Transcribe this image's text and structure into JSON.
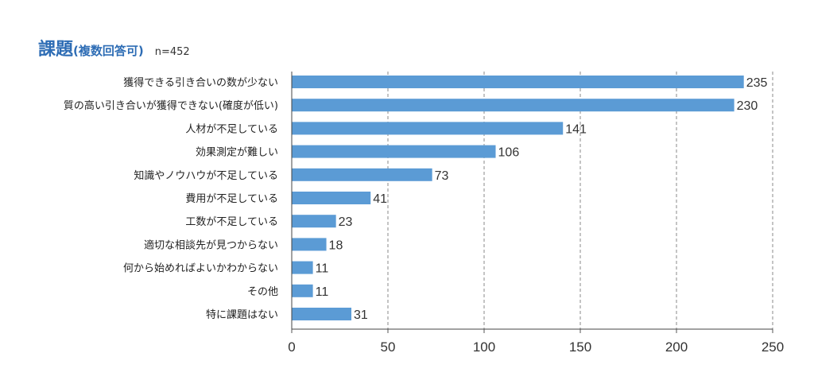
{
  "chart_data": {
    "type": "bar",
    "orientation": "horizontal",
    "title": "課題",
    "subtitle": "(複数回答可)",
    "note": "n=452",
    "categories": [
      "獲得できる引き合いの数が少ない",
      "質の高い引き合いが獲得できない(確度が低い)",
      "人材が不足している",
      "効果測定が難しい",
      "知識やノウハウが不足している",
      "費用が不足している",
      "工数が不足している",
      "適切な相談先が見つからない",
      "何から始めればよいかわからない",
      "その他",
      "特に課題はない"
    ],
    "values": [
      235,
      230,
      141,
      106,
      73,
      41,
      23,
      18,
      11,
      11,
      31
    ],
    "xlim": [
      0,
      250
    ],
    "xticks": [
      "0",
      "50",
      "100",
      "150",
      "200",
      "250"
    ],
    "xlabel": "",
    "ylabel": "",
    "grid": "vertical dashed",
    "bar_color": "#5b9bd5",
    "title_color": "#2e6db5"
  }
}
